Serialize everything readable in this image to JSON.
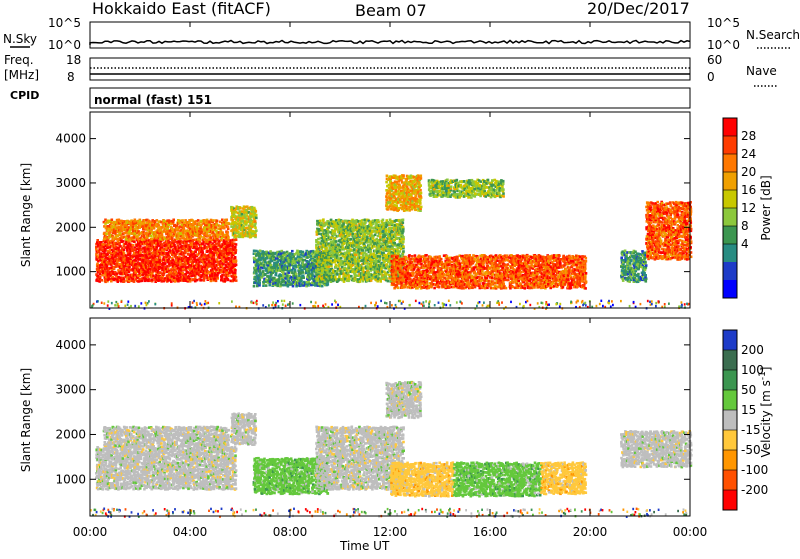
{
  "header": {
    "site": "Hokkaido East (fitACF)",
    "beam": "Beam 07",
    "date": "20/Dec/2017"
  },
  "top_panels": {
    "nsky_label": "N.Sky",
    "nsky_ticks": [
      "10^5",
      "10^0"
    ],
    "nsearch_label": "N.Search",
    "nsearch_ticks": [
      "10^5",
      "10^0"
    ],
    "freq_label": "Freq.",
    "freq_unit": "[MHz]",
    "freq_ticks": [
      "18",
      "8"
    ],
    "nave_label": "Nave",
    "nave_ticks": [
      "60",
      "0"
    ],
    "cpid_label": "CPID",
    "cpid_value": "normal (fast) 151"
  },
  "chart_data": [
    {
      "type": "heatmap",
      "panel": "power",
      "xlabel": "Time UT",
      "ylabel": "Slant Range [km]",
      "x_ticks": [
        "00:00",
        "04:00",
        "08:00",
        "12:00",
        "16:00",
        "20:00",
        "00:00"
      ],
      "xlim_hours": [
        0,
        24
      ],
      "y_ticks": [
        1000,
        2000,
        3000,
        4000
      ],
      "ylim_km": [
        180,
        4600
      ],
      "colorbar": {
        "label": "Power [dB]",
        "ticks": [
          "28",
          "24",
          "20",
          "16",
          "12",
          "8",
          "4"
        ],
        "colors": [
          "#ff0000",
          "#ff3c00",
          "#ff7800",
          "#f0a000",
          "#c8c800",
          "#8cc83c",
          "#3c9650",
          "#288c82",
          "#1e3cc8",
          "#0000ff"
        ]
      },
      "regions": [
        {
          "t0": 0.2,
          "t1": 5.8,
          "r0": 800,
          "r1": 1750,
          "level": 0.95
        },
        {
          "t0": 0.5,
          "t1": 5.5,
          "r0": 1750,
          "r1": 2200,
          "level": 0.75
        },
        {
          "t0": 5.6,
          "t1": 6.6,
          "r0": 1800,
          "r1": 2500,
          "level": 0.55
        },
        {
          "t0": 6.5,
          "t1": 9.5,
          "r0": 700,
          "r1": 1500,
          "level": 0.3
        },
        {
          "t0": 9.0,
          "t1": 12.5,
          "r0": 800,
          "r1": 2200,
          "level": 0.45
        },
        {
          "t0": 12.0,
          "t1": 19.8,
          "r0": 650,
          "r1": 1400,
          "level": 0.85
        },
        {
          "t0": 11.8,
          "t1": 13.2,
          "r0": 2400,
          "r1": 3200,
          "level": 0.65
        },
        {
          "t0": 13.5,
          "t1": 16.5,
          "r0": 2700,
          "r1": 3100,
          "level": 0.45
        },
        {
          "t0": 21.2,
          "t1": 22.2,
          "r0": 800,
          "r1": 1500,
          "level": 0.3
        },
        {
          "t0": 22.2,
          "t1": 24.0,
          "r0": 1300,
          "r1": 2600,
          "level": 0.85
        }
      ]
    },
    {
      "type": "heatmap",
      "panel": "velocity",
      "xlabel": "Time UT",
      "ylabel": "Slant Range [km]",
      "x_ticks": [
        "00:00",
        "04:00",
        "08:00",
        "12:00",
        "16:00",
        "20:00",
        "00:00"
      ],
      "xlim_hours": [
        0,
        24
      ],
      "y_ticks": [
        1000,
        2000,
        3000,
        4000
      ],
      "ylim_km": [
        180,
        4600
      ],
      "colorbar": {
        "label": "Velocity [m s^-1]",
        "ticks": [
          "200",
          "100",
          "50",
          "15",
          "-15",
          "-50",
          "-100",
          "-200"
        ],
        "colors": [
          "#1e3cc8",
          "#3c6e50",
          "#3c9650",
          "#64c83c",
          "#bebebe",
          "#ffc83c",
          "#ff9600",
          "#ff5000",
          "#ff0000"
        ]
      },
      "regions": [
        {
          "t0": 0.2,
          "t1": 5.8,
          "r0": 800,
          "r1": 1750,
          "level": 4
        },
        {
          "t0": 0.5,
          "t1": 5.5,
          "r0": 1750,
          "r1": 2200,
          "level": 4
        },
        {
          "t0": 5.6,
          "t1": 6.6,
          "r0": 1800,
          "r1": 2500,
          "level": 4
        },
        {
          "t0": 6.5,
          "t1": 9.5,
          "r0": 700,
          "r1": 1500,
          "level": 3
        },
        {
          "t0": 9.0,
          "t1": 12.5,
          "r0": 800,
          "r1": 2200,
          "level": 4
        },
        {
          "t0": 12.0,
          "t1": 14.5,
          "r0": 650,
          "r1": 1400,
          "level": 5
        },
        {
          "t0": 14.5,
          "t1": 18.0,
          "r0": 650,
          "r1": 1400,
          "level": 3
        },
        {
          "t0": 18.0,
          "t1": 19.8,
          "r0": 700,
          "r1": 1400,
          "level": 5
        },
        {
          "t0": 11.8,
          "t1": 13.2,
          "r0": 2400,
          "r1": 3200,
          "level": 4
        },
        {
          "t0": 21.2,
          "t1": 24.0,
          "r0": 1300,
          "r1": 2100,
          "level": 4
        }
      ]
    }
  ]
}
